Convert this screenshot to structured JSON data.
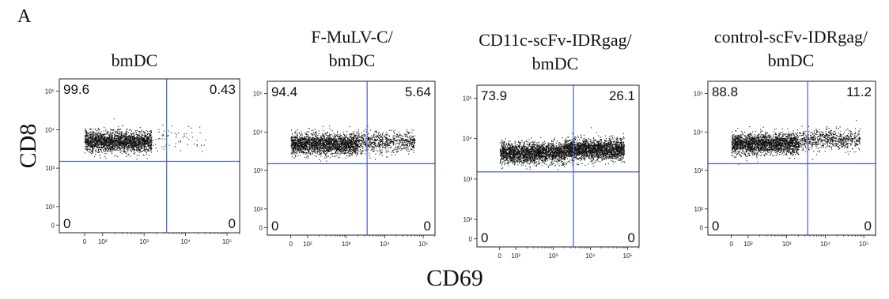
{
  "panel_letter": "A",
  "y_axis_label": "CD8",
  "x_axis_label": "CD69",
  "chart_data": [
    {
      "type": "scatter",
      "title_lines": [
        "bmDC"
      ],
      "xlabel": "CD69",
      "ylabel": "CD8",
      "quadrants": {
        "UL": "99.6",
        "UR": "0.43",
        "LL": "0",
        "LR": "0"
      },
      "x_gate": 3500,
      "y_gate": 1500,
      "clusters": [
        {
          "x_from": 0,
          "x_to": 1500,
          "y_center": 5000,
          "density": "high"
        },
        {
          "x_from": 1500,
          "x_to": 30000,
          "y_center": 6000,
          "density": "sparse"
        }
      ],
      "x_ticks": [
        "0",
        "10²",
        "10³",
        "10⁴",
        "10⁵"
      ],
      "y_ticks": [
        "10⁵",
        "10⁴",
        "10³",
        "10²",
        "0"
      ]
    },
    {
      "type": "scatter",
      "title_lines": [
        "F-MuLV-C/",
        "bmDC"
      ],
      "xlabel": "CD69",
      "ylabel": "CD8",
      "quadrants": {
        "UL": "94.4",
        "UR": "5.64",
        "LL": "0",
        "LR": "0"
      },
      "x_gate": 3500,
      "y_gate": 1500,
      "clusters": [
        {
          "x_from": 0,
          "x_to": 2000,
          "y_center": 5000,
          "density": "high"
        },
        {
          "x_from": 2000,
          "x_to": 60000,
          "y_center": 5500,
          "density": "medium"
        }
      ],
      "x_ticks": [
        "0",
        "10²",
        "10³",
        "10⁴",
        "10⁵"
      ],
      "y_ticks": [
        "10⁵",
        "10⁴",
        "10³",
        "10²",
        "0"
      ]
    },
    {
      "type": "scatter",
      "title_lines": [
        "CD11c-scFv-IDRgag/",
        "bmDC"
      ],
      "xlabel": "CD69",
      "ylabel": "CD8",
      "quadrants": {
        "UL": "73.9",
        "UR": "26.1",
        "LL": "0",
        "LR": "0"
      },
      "x_gate": 3500,
      "y_gate": 1500,
      "clusters": [
        {
          "x_from": 0,
          "x_to": 2000,
          "y_center": 4500,
          "density": "high"
        },
        {
          "x_from": 2000,
          "x_to": 80000,
          "y_center": 5500,
          "density": "high"
        }
      ],
      "x_ticks": [
        "0",
        "10²",
        "10³",
        "10⁴",
        "10⁵"
      ],
      "y_ticks": [
        "10⁵",
        "10⁴",
        "10³",
        "10²",
        "0"
      ]
    },
    {
      "type": "scatter",
      "title_lines": [
        "control-scFv-IDRgag/",
        "bmDC"
      ],
      "xlabel": "CD69",
      "ylabel": "CD8",
      "quadrants": {
        "UL": "88.8",
        "UR": "11.2",
        "LL": "0",
        "LR": "0"
      },
      "x_gate": 3500,
      "y_gate": 1500,
      "clusters": [
        {
          "x_from": 0,
          "x_to": 2000,
          "y_center": 5000,
          "density": "high"
        },
        {
          "x_from": 2000,
          "x_to": 80000,
          "y_center": 6500,
          "density": "medium"
        }
      ],
      "x_ticks": [
        "0",
        "10²",
        "10³",
        "10⁴",
        "10⁵"
      ],
      "y_ticks": [
        "10⁵",
        "10⁴",
        "10³",
        "10²",
        "0"
      ]
    }
  ],
  "colors": {
    "gate_line": "#4a5fd0",
    "dots": "#111111",
    "frame": "#222222"
  }
}
